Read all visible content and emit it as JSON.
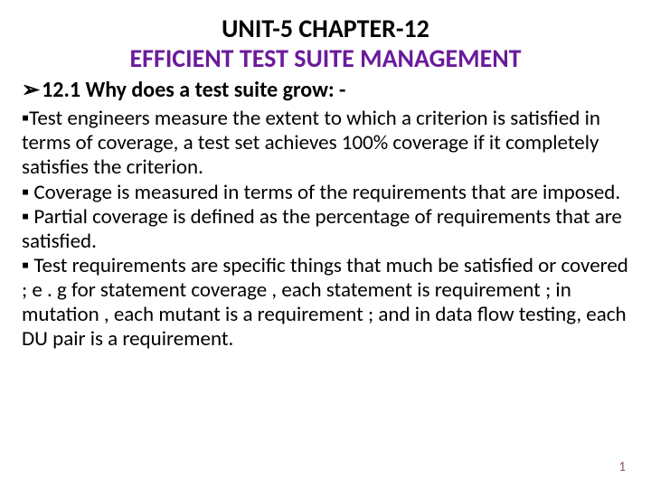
{
  "title": {
    "line1": "UNIT-5 CHAPTER-12",
    "line2": "EFFICIENT TEST SUITE MANAGEMENT"
  },
  "section_heading": "12.1 Why does a test suite grow: -",
  "bullets": [
    "Test engineers measure the extent to which a criterion is satisfied in terms of coverage, a test set achieves 100% coverage if it completely satisfies the criterion.",
    " Coverage is measured in terms of the requirements that are imposed.",
    " Partial coverage is defined as the percentage of requirements that are satisfied.",
    " Test requirements are specific things that much be satisfied or covered ; e . g for statement coverage , each statement is requirement ; in mutation , each mutant is a requirement ; and in data flow testing, each DU pair is a requirement."
  ],
  "page_number": "1",
  "glyphs": {
    "section_arrow": "➢",
    "square_bullet": "▪"
  },
  "colors": {
    "title_line2": "#6a1b9a",
    "text": "#000000",
    "page_num": "#8b5a5a",
    "background": "#ffffff"
  },
  "fonts": {
    "title_size": 28,
    "section_size": 24,
    "body_size": 23
  }
}
